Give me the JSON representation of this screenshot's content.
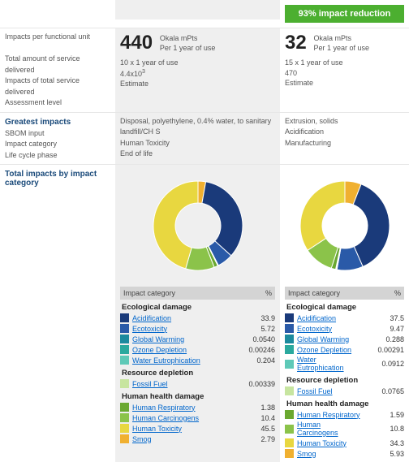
{
  "badge": "93% impact reduction",
  "left_labels": {
    "r1": [
      "Impacts per functional unit",
      "",
      "Total amount of service delivered",
      "Impacts of total service delivered",
      "Assessment level"
    ],
    "r2_title": "Greatest impacts",
    "r2": [
      "SBOM input",
      "Impact category",
      "Life cycle phase"
    ],
    "r3_title": "Total impacts by impact category"
  },
  "mid": {
    "score": "440",
    "score_unit": "Okala mPts",
    "score_per": "Per 1 year of use",
    "meta1": "10 x 1 year of use",
    "meta2_html": "4.4x10<sup>3</sup>",
    "meta3": "Estimate",
    "greatest": [
      "Disposal, polyethylene, 0.4% water, to sanitary landfill/CH S",
      "Human Toxicity",
      "End of life"
    ]
  },
  "right": {
    "score": "32",
    "score_unit": "Okala mPts",
    "score_per": "Per 1 year of use",
    "meta1": "15 x 1 year of use",
    "meta2": "470",
    "meta3": "Estimate",
    "greatest": [
      "Extrusion, solids",
      "Acidification",
      "Manufacturing"
    ]
  },
  "th": {
    "c1": "Impact category",
    "c2": "%"
  },
  "groups": [
    "Ecological damage",
    "Resource depletion",
    "Human health damage"
  ],
  "cats": [
    {
      "name": "Acidification",
      "color": "#1a3a7a",
      "g": 0,
      "m": "33.9",
      "r": "37.5"
    },
    {
      "name": "Ecotoxicity",
      "color": "#2a5aa8",
      "g": 0,
      "m": "5.72",
      "r": "9.47"
    },
    {
      "name": "Global Warming",
      "color": "#1b8a9e",
      "g": 0,
      "m": "0.0540",
      "r": "0.288"
    },
    {
      "name": "Ozone Depletion",
      "color": "#2aa99e",
      "g": 0,
      "m": "0.00246",
      "r": "0.00291"
    },
    {
      "name": "Water Eutrophication",
      "color": "#5ec9b7",
      "g": 0,
      "m": "0.204",
      "r": "0.0912"
    },
    {
      "name": "Fossil Fuel",
      "color": "#c7e5a0",
      "g": 1,
      "m": "0.00339",
      "r": "0.0765"
    },
    {
      "name": "Human Respiratory",
      "color": "#6aa830",
      "g": 2,
      "m": "1.38",
      "r": "1.59"
    },
    {
      "name": "Human Carcinogens",
      "color": "#8bc34a",
      "g": 2,
      "m": "10.4",
      "r": "10.8"
    },
    {
      "name": "Human Toxicity",
      "color": "#e8d740",
      "g": 2,
      "m": "45.5",
      "r": "34.3"
    },
    {
      "name": "Smog",
      "color": "#f0b030",
      "g": 2,
      "m": "2.79",
      "r": "5.93"
    }
  ],
  "donut_m": [
    {
      "c": "#f0b030",
      "v": 2.79
    },
    {
      "c": "#1a3a7a",
      "v": 33.9
    },
    {
      "c": "#2a5aa8",
      "v": 5.72
    },
    {
      "c": "#1b8a9e",
      "v": 0.054
    },
    {
      "c": "#5ec9b7",
      "v": 0.204
    },
    {
      "c": "#6aa830",
      "v": 1.38
    },
    {
      "c": "#8bc34a",
      "v": 10.4
    },
    {
      "c": "#e8d740",
      "v": 45.5
    }
  ],
  "donut_r": [
    {
      "c": "#f0b030",
      "v": 5.93
    },
    {
      "c": "#1a3a7a",
      "v": 37.5
    },
    {
      "c": "#2a5aa8",
      "v": 9.47
    },
    {
      "c": "#1b8a9e",
      "v": 0.288
    },
    {
      "c": "#5ec9b7",
      "v": 0.0912
    },
    {
      "c": "#c7e5a0",
      "v": 0.0765
    },
    {
      "c": "#6aa830",
      "v": 1.59
    },
    {
      "c": "#8bc34a",
      "v": 10.8
    },
    {
      "c": "#e8d740",
      "v": 34.3
    }
  ]
}
